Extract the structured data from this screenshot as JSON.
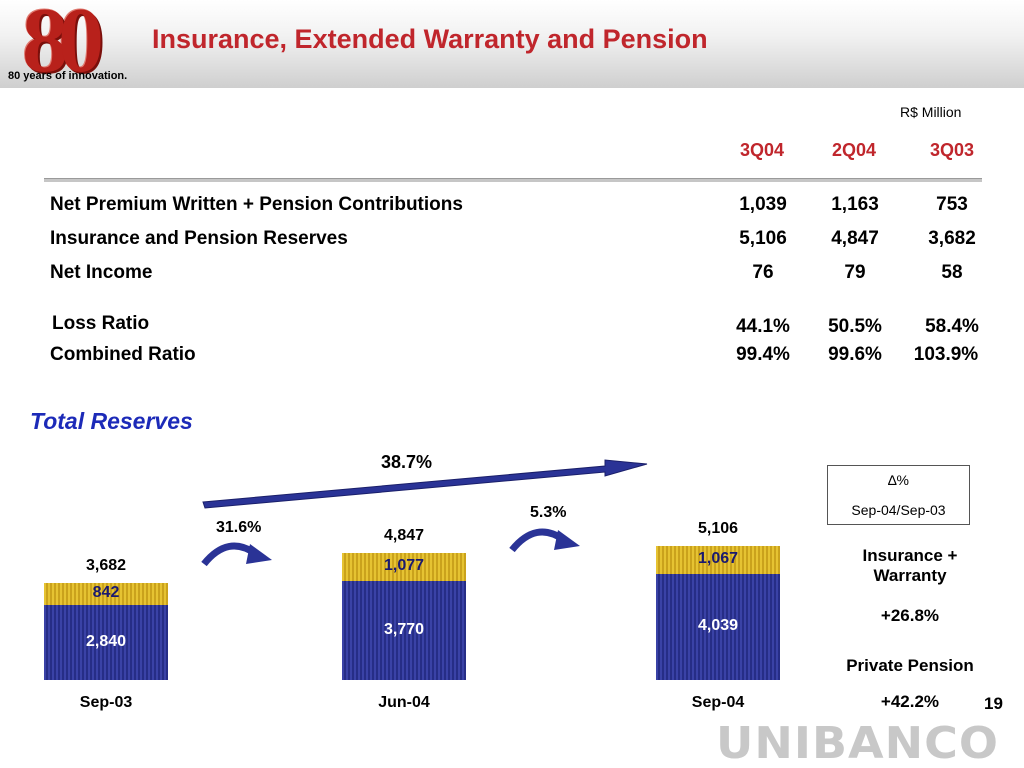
{
  "header": {
    "logo_number": "80",
    "logo_tagline": "80 years of innovation.",
    "title": "Insurance, Extended Warranty and Pension"
  },
  "table": {
    "units": "R$ Million",
    "columns": [
      "3Q04",
      "2Q04",
      "3Q03"
    ],
    "rows": [
      {
        "label": "Net Premium Written + Pension Contributions",
        "values": [
          "1,039",
          "1,163",
          "753"
        ]
      },
      {
        "label": "Insurance and Pension Reserves",
        "values": [
          "5,106",
          "4,847",
          "3,682"
        ]
      },
      {
        "label": "Net Income",
        "values": [
          "76",
          "79",
          "58"
        ]
      },
      {
        "label": "Loss Ratio",
        "values": [
          "44.1%",
          "50.5%",
          "58.4%"
        ]
      },
      {
        "label": "Combined Ratio",
        "values": [
          "99.4%",
          "99.6%",
          "103.9%"
        ]
      }
    ]
  },
  "section_title": "Total Reserves",
  "chart_data": {
    "type": "bar",
    "stacked": true,
    "categories": [
      "Sep-03",
      "Jun-04",
      "Sep-04"
    ],
    "totals": [
      "3,682",
      "4,847",
      "5,106"
    ],
    "series": [
      {
        "values": [
          2840,
          3770,
          4039
        ],
        "labels": [
          "2,840",
          "3,770",
          "4,039"
        ],
        "color": "#2e3594"
      },
      {
        "values": [
          842,
          1077,
          1067
        ],
        "labels": [
          "842",
          "1,077",
          "1,067"
        ],
        "color": "#d8b428"
      }
    ],
    "growth": {
      "overall": "38.7%",
      "sep03_to_jun04": "31.6%",
      "jun04_to_sep04": "5.3%"
    },
    "ylim": [
      0,
      5106
    ]
  },
  "legend": {
    "delta": "∆%",
    "period": "Sep-04/Sep-03"
  },
  "side": {
    "insurance_label": "Insurance + Warranty",
    "insurance_growth": "+26.8%",
    "pension_label": "Private Pension",
    "pension_growth": "+42.2%"
  },
  "page_number": "19",
  "brand": "UNIBANCO",
  "colors": {
    "title_red": "#c0262c",
    "section_blue": "#1c2ab8",
    "bar_blue": "#2e3594",
    "bar_gold": "#d8b428"
  }
}
